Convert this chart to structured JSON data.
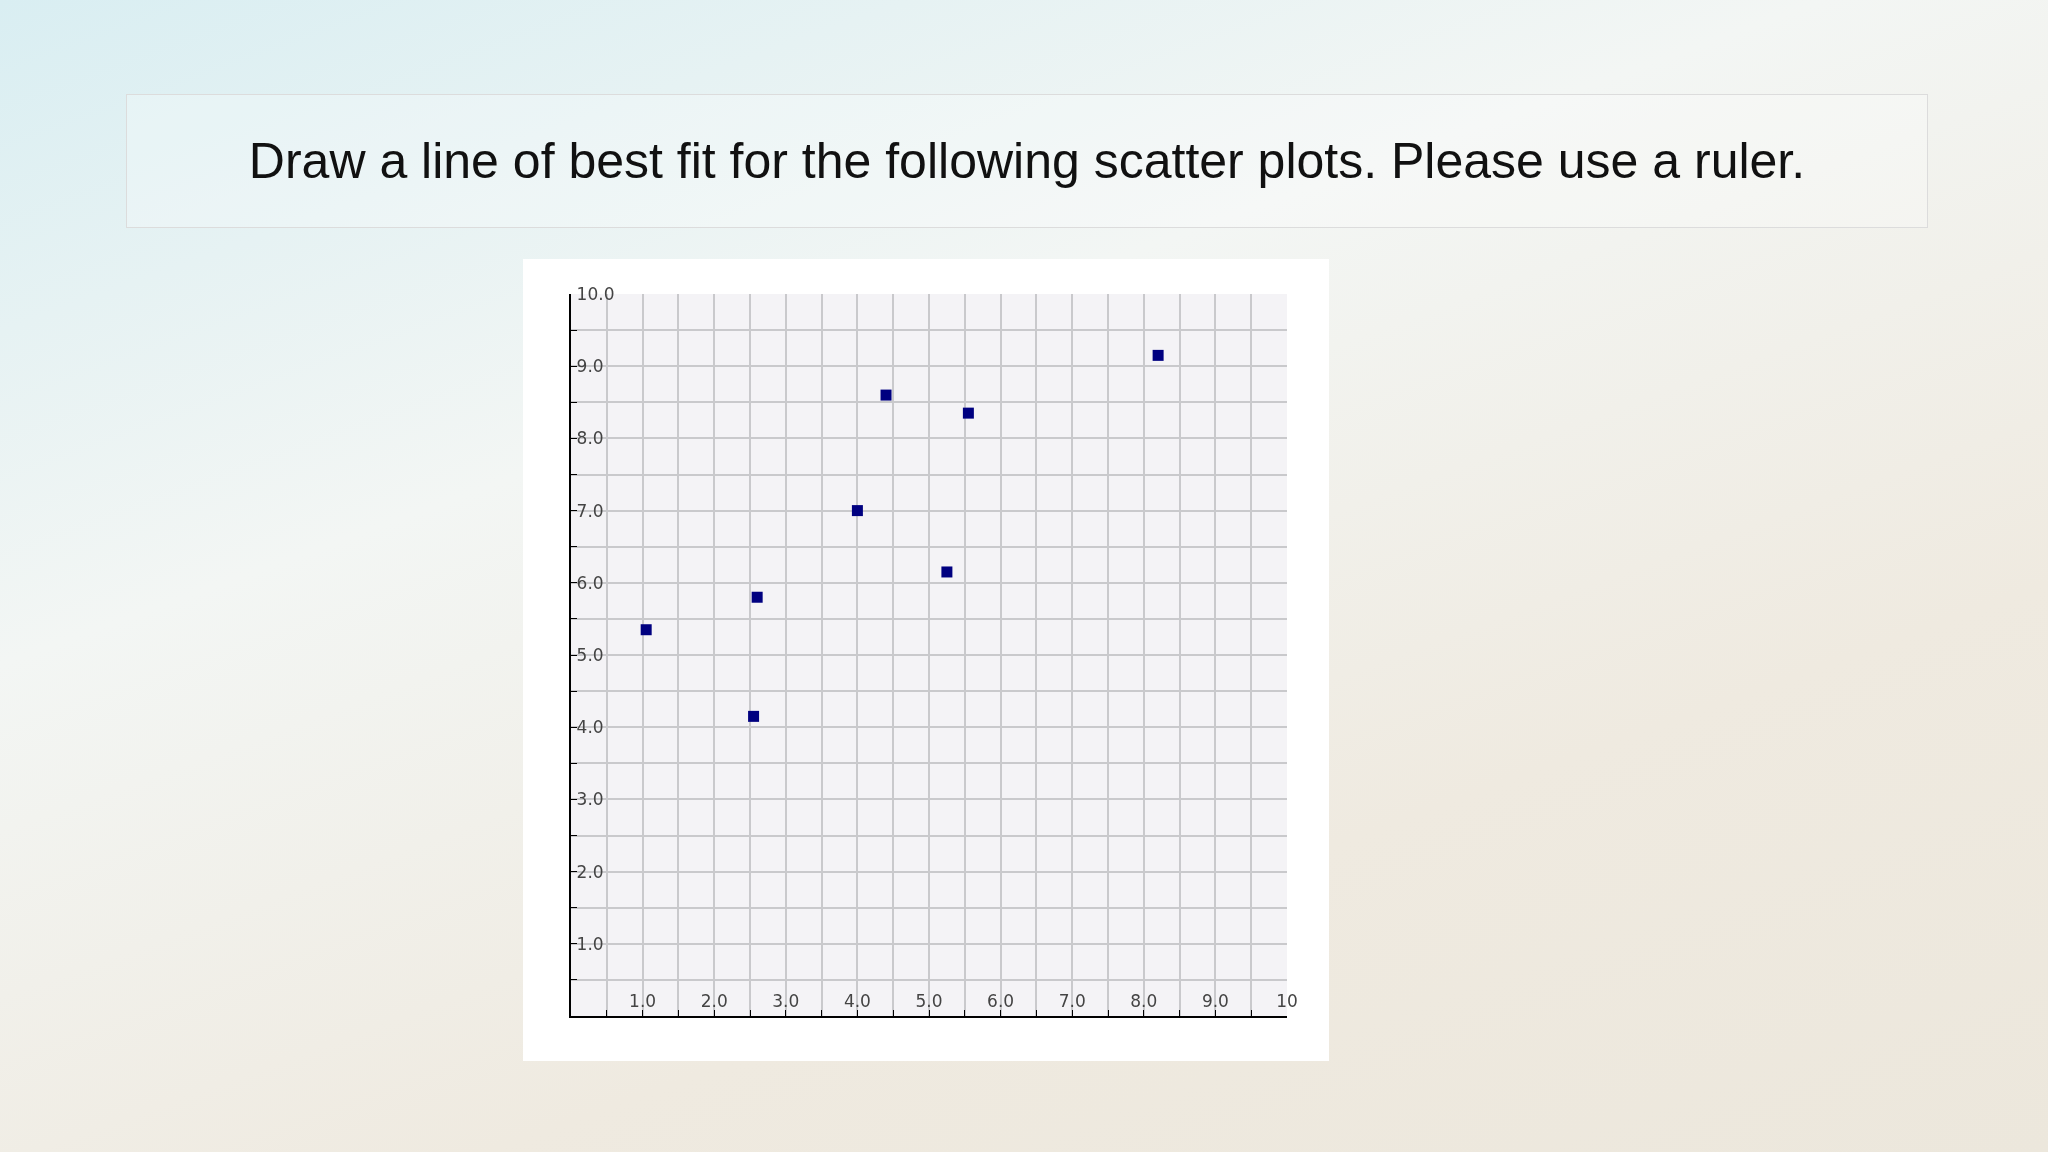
{
  "chart_data": {
    "type": "scatter",
    "title": "Draw a line of best fit for the following scatter plots. Please use a ruler.",
    "x": [
      1.05,
      2.6,
      2.55,
      4.0,
      4.4,
      5.25,
      5.55,
      8.2
    ],
    "values": [
      5.35,
      5.8,
      4.15,
      7.0,
      8.6,
      6.15,
      8.35,
      9.15
    ],
    "color": "#000080",
    "marker": "square",
    "grid": true,
    "xlim": [
      0,
      10
    ],
    "ylim": [
      0,
      10
    ],
    "xticks": [
      {
        "value": 0.5,
        "label": null
      },
      {
        "value": 1,
        "label": "1.0"
      },
      {
        "value": 1.5,
        "label": null
      },
      {
        "value": 2,
        "label": "2.0"
      },
      {
        "value": 2.5,
        "label": null
      },
      {
        "value": 3,
        "label": "3.0"
      },
      {
        "value": 3.5,
        "label": null
      },
      {
        "value": 4,
        "label": "4.0"
      },
      {
        "value": 4.5,
        "label": null
      },
      {
        "value": 5,
        "label": "5.0"
      },
      {
        "value": 5.5,
        "label": null
      },
      {
        "value": 6,
        "label": "6.0"
      },
      {
        "value": 6.5,
        "label": null
      },
      {
        "value": 7,
        "label": "7.0"
      },
      {
        "value": 7.5,
        "label": null
      },
      {
        "value": 8,
        "label": "8.0"
      },
      {
        "value": 8.5,
        "label": null
      },
      {
        "value": 9,
        "label": "9.0"
      },
      {
        "value": 9.5,
        "label": null
      },
      {
        "value": 10,
        "label": "10"
      }
    ],
    "yticks": [
      {
        "value": 0.5,
        "label": null
      },
      {
        "value": 1,
        "label": "1.0"
      },
      {
        "value": 1.5,
        "label": null
      },
      {
        "value": 2,
        "label": "2.0"
      },
      {
        "value": 2.5,
        "label": null
      },
      {
        "value": 3,
        "label": "3.0"
      },
      {
        "value": 3.5,
        "label": null
      },
      {
        "value": 4,
        "label": "4.0"
      },
      {
        "value": 4.5,
        "label": null
      },
      {
        "value": 5,
        "label": "5.0"
      },
      {
        "value": 5.5,
        "label": null
      },
      {
        "value": 6,
        "label": "6.0"
      },
      {
        "value": 6.5,
        "label": null
      },
      {
        "value": 7,
        "label": "7.0"
      },
      {
        "value": 7.5,
        "label": null
      },
      {
        "value": 8,
        "label": "8.0"
      },
      {
        "value": 8.5,
        "label": null
      },
      {
        "value": 9,
        "label": "9.0"
      },
      {
        "value": 9.5,
        "label": null
      },
      {
        "value": 10,
        "label": "10.0"
      }
    ]
  }
}
